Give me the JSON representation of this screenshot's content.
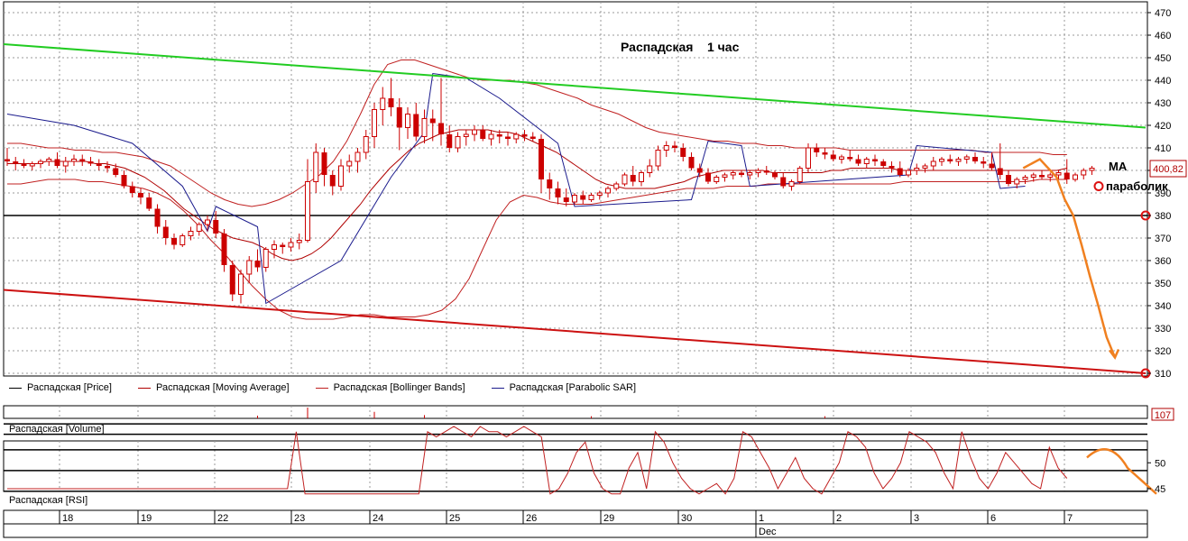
{
  "chart_data": [
    {
      "type": "candlestick",
      "title": "Распадская    1 час",
      "ylim": [
        307,
        475
      ],
      "y_ticks": [
        310,
        320,
        330,
        340,
        350,
        360,
        370,
        380,
        390,
        400,
        410,
        420,
        430,
        440,
        450,
        460,
        470
      ],
      "grid": true,
      "last_price_label": "400,82",
      "annotations": [
        "МА",
        "параболик"
      ],
      "horizontal_levels": [
        380
      ],
      "legend": [
        "Распадская [Price]",
        "Распадская [Moving Average]",
        "Распадская [Bollinger Bands]",
        "Распадская [Parabolic SAR]"
      ],
      "colors": {
        "candles": "#cc0000",
        "moving_average": "#b00000",
        "bollinger": "#c02020",
        "parabolic_sar": "#1a1a8c",
        "resistance": "#22cc22",
        "support": "#cc1111",
        "forecast": "#f08020"
      },
      "candles": [
        [
          405,
          410,
          402,
          404
        ],
        [
          404,
          406,
          400,
          403
        ],
        [
          403,
          405,
          401,
          402
        ],
        [
          402,
          404,
          400,
          403
        ],
        [
          403,
          405,
          401,
          404
        ],
        [
          404,
          406,
          402,
          405
        ],
        [
          405,
          408,
          401,
          402
        ],
        [
          402,
          406,
          399,
          404
        ],
        [
          404,
          407,
          402,
          405
        ],
        [
          405,
          407,
          402,
          404
        ],
        [
          404,
          406,
          402,
          403
        ],
        [
          403,
          405,
          400,
          402
        ],
        [
          402,
          404,
          399,
          401
        ],
        [
          401,
          403,
          397,
          398
        ],
        [
          398,
          400,
          392,
          393
        ],
        [
          393,
          395,
          388,
          390
        ],
        [
          390,
          392,
          385,
          388
        ],
        [
          388,
          390,
          382,
          383
        ],
        [
          383,
          385,
          372,
          375
        ],
        [
          375,
          378,
          367,
          370
        ],
        [
          370,
          372,
          365,
          367
        ],
        [
          367,
          372,
          366,
          371
        ],
        [
          371,
          375,
          369,
          373
        ],
        [
          373,
          377,
          371,
          376
        ],
        [
          376,
          380,
          373,
          378
        ],
        [
          378,
          382,
          370,
          372
        ],
        [
          372,
          374,
          355,
          358
        ],
        [
          358,
          360,
          342,
          345
        ],
        [
          345,
          356,
          341,
          354
        ],
        [
          354,
          362,
          350,
          360
        ],
        [
          360,
          365,
          355,
          357
        ],
        [
          357,
          366,
          355,
          365
        ],
        [
          365,
          369,
          361,
          367
        ],
        [
          367,
          368,
          363,
          366
        ],
        [
          366,
          370,
          364,
          368
        ],
        [
          368,
          372,
          365,
          369
        ],
        [
          369,
          405,
          368,
          395
        ],
        [
          395,
          412,
          390,
          408
        ],
        [
          408,
          410,
          393,
          398
        ],
        [
          398,
          400,
          389,
          393
        ],
        [
          393,
          405,
          391,
          402
        ],
        [
          402,
          407,
          399,
          404
        ],
        [
          404,
          410,
          399,
          408
        ],
        [
          408,
          418,
          405,
          415
        ],
        [
          415,
          430,
          410,
          427
        ],
        [
          427,
          437,
          420,
          432
        ],
        [
          432,
          441,
          424,
          428
        ],
        [
          428,
          432,
          409,
          419
        ],
        [
          419,
          428,
          414,
          425
        ],
        [
          425,
          430,
          413,
          415
        ],
        [
          415,
          427,
          412,
          423
        ],
        [
          423,
          427,
          413,
          421
        ],
        [
          421,
          441,
          411,
          416
        ],
        [
          416,
          420,
          408,
          410
        ],
        [
          410,
          417,
          408,
          415
        ],
        [
          415,
          418,
          411,
          416
        ],
        [
          416,
          420,
          413,
          418
        ],
        [
          418,
          420,
          413,
          414
        ],
        [
          414,
          418,
          411,
          416
        ],
        [
          416,
          418,
          412,
          415
        ],
        [
          415,
          417,
          411,
          414
        ],
        [
          414,
          417,
          412,
          416
        ],
        [
          416,
          418,
          413,
          415
        ],
        [
          415,
          417,
          413,
          414
        ],
        [
          414,
          416,
          390,
          396
        ],
        [
          396,
          399,
          387,
          392
        ],
        [
          392,
          395,
          385,
          388
        ],
        [
          388,
          392,
          384,
          386
        ],
        [
          386,
          390,
          385,
          389
        ],
        [
          389,
          391,
          385,
          387
        ],
        [
          387,
          390,
          386,
          389
        ],
        [
          389,
          391,
          387,
          390
        ],
        [
          390,
          393,
          388,
          392
        ],
        [
          392,
          395,
          391,
          394
        ],
        [
          394,
          399,
          393,
          398
        ],
        [
          398,
          402,
          393,
          395
        ],
        [
          395,
          400,
          393,
          399
        ],
        [
          399,
          405,
          397,
          402
        ],
        [
          402,
          411,
          400,
          409
        ],
        [
          409,
          413,
          406,
          411
        ],
        [
          411,
          413,
          408,
          410
        ],
        [
          410,
          412,
          404,
          406
        ],
        [
          406,
          408,
          400,
          401
        ],
        [
          401,
          403,
          397,
          399
        ],
        [
          399,
          401,
          394,
          395
        ],
        [
          395,
          398,
          394,
          397
        ],
        [
          397,
          399,
          395,
          398
        ],
        [
          398,
          400,
          396,
          399
        ],
        [
          399,
          400,
          397,
          398
        ],
        [
          398,
          400,
          396,
          399
        ],
        [
          399,
          401,
          397,
          400
        ],
        [
          400,
          402,
          398,
          399
        ],
        [
          399,
          400,
          396,
          397
        ],
        [
          397,
          399,
          392,
          393
        ],
        [
          393,
          396,
          391,
          395
        ],
        [
          395,
          402,
          394,
          401
        ],
        [
          401,
          412,
          399,
          410
        ],
        [
          410,
          412,
          406,
          408
        ],
        [
          408,
          410,
          405,
          407
        ],
        [
          407,
          409,
          404,
          405
        ],
        [
          405,
          407,
          403,
          406
        ],
        [
          406,
          409,
          404,
          405
        ],
        [
          405,
          407,
          402,
          403
        ],
        [
          403,
          406,
          401,
          405
        ],
        [
          405,
          407,
          402,
          404
        ],
        [
          404,
          405,
          401,
          402
        ],
        [
          402,
          404,
          399,
          401
        ],
        [
          401,
          404,
          397,
          398
        ],
        [
          398,
          401,
          397,
          400
        ],
        [
          400,
          403,
          398,
          401
        ],
        [
          401,
          403,
          399,
          402
        ],
        [
          402,
          406,
          400,
          404
        ],
        [
          404,
          406,
          402,
          405
        ],
        [
          405,
          407,
          403,
          404
        ],
        [
          404,
          406,
          402,
          405
        ],
        [
          405,
          407,
          403,
          406
        ],
        [
          406,
          408,
          403,
          404
        ],
        [
          404,
          406,
          401,
          403
        ],
        [
          403,
          408,
          400,
          401
        ],
        [
          401,
          412,
          396,
          398
        ],
        [
          398,
          400,
          393,
          394
        ],
        [
          394,
          397,
          392,
          396
        ],
        [
          396,
          398,
          394,
          397
        ],
        [
          397,
          399,
          395,
          398
        ],
        [
          398,
          400,
          396,
          397
        ],
        [
          397,
          399,
          395,
          398
        ],
        [
          398,
          400,
          396,
          399
        ],
        [
          399,
          405,
          394,
          396
        ],
        [
          396,
          399,
          395,
          398
        ],
        [
          398,
          401,
          396,
          400
        ],
        [
          400,
          402,
          398,
          401
        ]
      ],
      "moving_average": [
        403,
        403,
        403,
        403,
        404,
        404,
        404,
        404,
        404,
        403,
        403,
        402,
        401,
        399,
        397,
        394,
        391,
        387,
        383,
        380,
        377,
        374,
        372,
        370,
        369,
        368,
        366,
        363,
        361,
        360,
        361,
        363,
        366,
        370,
        375,
        380,
        385,
        391,
        396,
        401,
        405,
        409,
        412,
        414,
        416,
        417,
        418,
        418,
        418,
        418,
        417,
        417,
        416,
        414,
        412,
        410,
        408,
        405,
        402,
        399,
        396,
        394,
        393,
        392,
        392,
        392,
        392,
        393,
        394,
        395,
        397,
        398,
        399,
        400,
        400,
        400,
        400,
        400,
        399,
        399,
        399,
        399,
        399,
        399,
        400,
        400,
        401,
        401,
        401,
        401,
        401,
        400,
        400,
        400,
        400,
        400,
        400,
        400,
        400,
        400,
        400,
        400,
        400,
        400,
        400,
        400,
        400,
        400,
        401
      ],
      "bollinger_upper": [
        412,
        412,
        411,
        410,
        410,
        409,
        409,
        408,
        408,
        407,
        406,
        404,
        402,
        398,
        394,
        390,
        387,
        385,
        384,
        385,
        387,
        390,
        394,
        398,
        404,
        413,
        425,
        438,
        447,
        449,
        449,
        447,
        445,
        443,
        441,
        440,
        440,
        440,
        439,
        438,
        436,
        434,
        432,
        429,
        427,
        425,
        422,
        419,
        417,
        416,
        415,
        414,
        413,
        413,
        412,
        412,
        411,
        411,
        410,
        410,
        410,
        410,
        409,
        409,
        409,
        409,
        409,
        409,
        409,
        409,
        409,
        409,
        408,
        408,
        408,
        408,
        408,
        407,
        407
      ],
      "bollinger_lower": [
        394,
        394,
        395,
        396,
        396,
        396,
        395,
        395,
        394,
        393,
        392,
        390,
        387,
        382,
        376,
        369,
        363,
        356,
        349,
        343,
        338,
        335,
        334,
        334,
        334,
        335,
        336,
        336,
        335,
        335,
        335,
        336,
        338,
        343,
        352,
        365,
        378,
        386,
        389,
        388,
        386,
        385,
        385,
        385,
        386,
        387,
        388,
        389,
        390,
        391,
        392,
        392,
        392,
        393,
        393,
        393,
        394,
        394,
        394,
        394,
        394,
        394,
        394,
        394,
        394,
        394,
        395,
        395,
        395,
        395,
        395,
        395,
        395,
        395,
        395,
        395,
        396,
        396,
        396
      ],
      "parabolic_sar": [
        [
          0,
          425
        ],
        [
          8,
          420
        ],
        [
          15,
          412
        ],
        [
          21,
          393
        ],
        [
          24,
          373
        ],
        [
          25,
          384
        ],
        [
          30,
          375
        ],
        [
          31,
          341
        ],
        [
          40,
          360
        ],
        [
          46,
          397
        ],
        [
          50,
          417
        ],
        [
          51,
          443
        ],
        [
          55,
          441
        ],
        [
          59,
          432
        ],
        [
          66,
          412
        ],
        [
          68,
          384
        ],
        [
          82,
          387
        ],
        [
          84,
          413
        ],
        [
          88,
          411
        ],
        [
          89,
          393
        ],
        [
          108,
          398
        ],
        [
          109,
          411
        ],
        [
          118,
          408
        ],
        [
          119,
          392
        ],
        [
          122,
          393
        ]
      ],
      "resistance_line": {
        "from": [
          0,
          456
        ],
        "to": [
          131,
          419
        ]
      },
      "support_line": {
        "from": [
          0,
          347
        ],
        "to": [
          131,
          310
        ]
      },
      "forecast_path": [
        [
          125,
          401
        ],
        [
          127,
          405
        ],
        [
          129,
          397
        ],
        [
          130,
          387
        ],
        [
          131,
          380
        ],
        [
          132,
          367
        ],
        [
          133,
          353
        ],
        [
          134,
          340
        ],
        [
          135,
          326
        ],
        [
          136,
          317
        ]
      ],
      "forecast_markers": [
        [
          124,
          393
        ],
        [
          131,
          380
        ],
        [
          131,
          310
        ]
      ]
    },
    {
      "type": "bar",
      "label": "Распадская [Volume]",
      "last_value_label": "107",
      "spikes": [
        [
          30,
          0.25
        ],
        [
          36,
          1.0
        ],
        [
          44,
          0.6
        ],
        [
          50,
          0.3
        ],
        [
          70,
          0.2
        ],
        [
          98,
          0.2
        ]
      ]
    },
    {
      "type": "line",
      "label": "Распадская [RSI]",
      "ylim": [
        43,
        58
      ],
      "y_ticks": [
        45,
        50
      ],
      "horizontal_levels": [
        44.5,
        48.5,
        52.5,
        55.5,
        57.5
      ],
      "values": [
        45,
        45,
        45,
        45,
        45,
        45,
        45,
        45,
        45,
        45,
        45,
        45,
        45,
        45,
        45,
        45,
        45,
        45,
        45,
        45,
        45,
        45,
        45,
        45,
        45,
        45,
        45,
        45,
        45,
        45,
        45,
        45,
        45,
        56,
        44,
        44,
        44,
        44,
        44,
        44,
        44,
        44,
        44,
        44,
        44,
        44,
        44,
        44,
        56,
        55,
        56,
        57,
        56,
        55,
        57,
        56,
        56,
        55,
        56,
        57,
        56,
        55,
        44,
        45,
        48,
        52,
        54,
        48,
        45,
        44,
        44,
        49,
        52,
        45,
        56,
        54,
        50,
        47,
        45,
        44,
        45,
        46,
        44,
        47,
        56,
        55,
        52,
        49,
        45,
        48,
        51,
        47,
        45,
        44,
        47,
        50,
        56,
        55,
        53,
        48,
        45,
        47,
        50,
        56,
        55,
        54,
        52,
        48,
        45,
        56,
        51,
        47,
        45,
        48,
        52,
        50,
        48,
        46,
        45,
        53,
        49,
        47
      ]
    }
  ],
  "time_axis": {
    "labels": [
      "18",
      "19",
      "22",
      "23",
      "24",
      "25",
      "26",
      "29",
      "30",
      "1",
      "2",
      "3",
      "6",
      "7"
    ],
    "month_label": "Dec"
  }
}
